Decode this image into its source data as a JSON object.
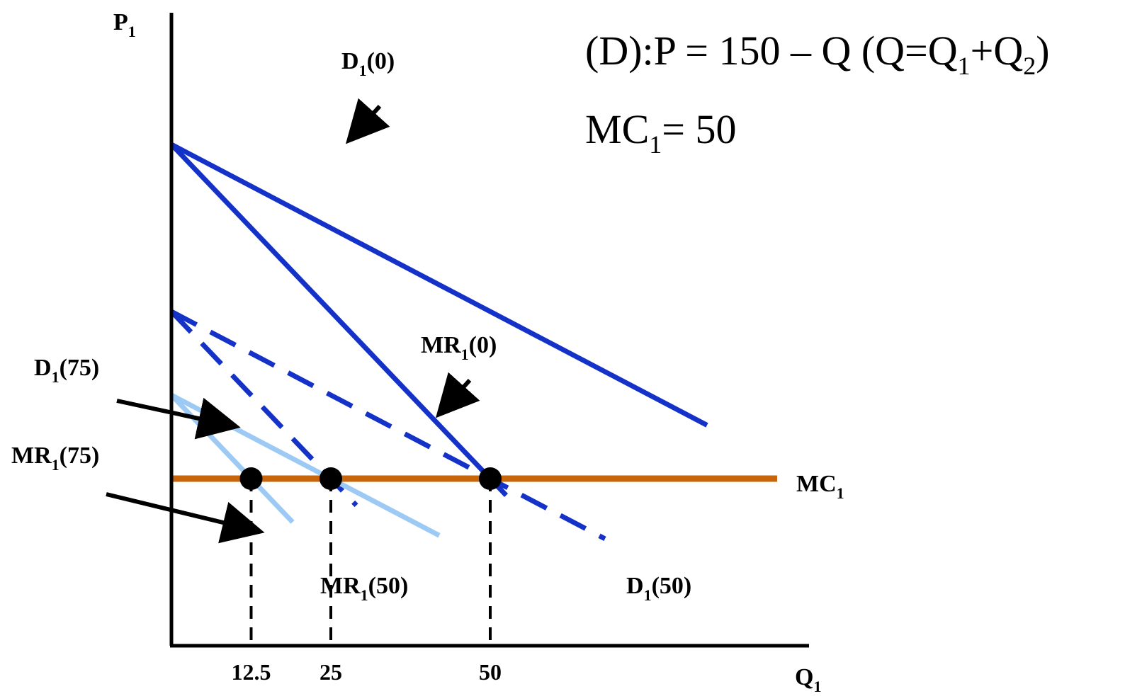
{
  "chart_data": {
    "type": "line",
    "title": "",
    "equation": {
      "demand_prefix": "(D):P = 150 – Q   (Q=Q",
      "demand_sub1": "1",
      "demand_plus": "+Q",
      "demand_sub2": "2",
      "demand_close": ")",
      "mc_prefix": "MC",
      "mc_sub": "1",
      "mc_suffix": "= 50"
    },
    "axes": {
      "y_label": "P",
      "y_label_sub": "1",
      "x_label": "Q",
      "x_label_sub": "1",
      "xlim": [
        0,
        100
      ],
      "ylim": [
        0,
        150
      ],
      "grid": false
    },
    "x_ticks": [
      {
        "value": 12.5,
        "label": "12.5"
      },
      {
        "value": 25,
        "label": "25"
      },
      {
        "value": 50,
        "label": "50"
      }
    ],
    "mc_level": 50,
    "series": [
      {
        "key": "d0",
        "name_main": "D",
        "name_sub": "1",
        "name_arg": "(0)",
        "style": "solid",
        "color": "#1432c8",
        "points": [
          [
            0,
            150
          ],
          [
            84,
            66
          ]
        ]
      },
      {
        "key": "mr0",
        "name_main": "MR",
        "name_sub": "1",
        "name_arg": "(0)",
        "style": "solid",
        "color": "#1432c8",
        "points": [
          [
            0,
            150
          ],
          [
            52.5,
            45
          ]
        ]
      },
      {
        "key": "d50",
        "name_main": "D",
        "name_sub": "1",
        "name_arg": "(50)",
        "style": "dashed",
        "color": "#1432c8",
        "points": [
          [
            0,
            100
          ],
          [
            68,
            32
          ]
        ]
      },
      {
        "key": "mr50",
        "name_main": "MR",
        "name_sub": "1",
        "name_arg": "(50)",
        "style": "dashed",
        "color": "#1432c8",
        "points": [
          [
            0,
            100
          ],
          [
            29,
            42
          ]
        ]
      },
      {
        "key": "d75",
        "name_main": "D",
        "name_sub": "1",
        "name_arg": "(75)",
        "style": "solid",
        "color": "#9ccaf4",
        "points": [
          [
            0,
            75
          ],
          [
            42,
            33
          ]
        ]
      },
      {
        "key": "mr75",
        "name_main": "MR",
        "name_sub": "1",
        "name_arg": "(75)",
        "style": "solid",
        "color": "#9ccaf4",
        "points": [
          [
            0,
            75
          ],
          [
            19,
            37
          ]
        ]
      },
      {
        "key": "mc",
        "name_main": "MC",
        "name_sub": "1",
        "name_arg": "",
        "style": "solid",
        "color": "#c8640a",
        "points": [
          [
            0,
            50
          ],
          [
            95,
            50
          ]
        ]
      }
    ],
    "equilibria": [
      [
        12.5,
        50
      ],
      [
        25,
        50
      ],
      [
        50,
        50
      ]
    ]
  }
}
